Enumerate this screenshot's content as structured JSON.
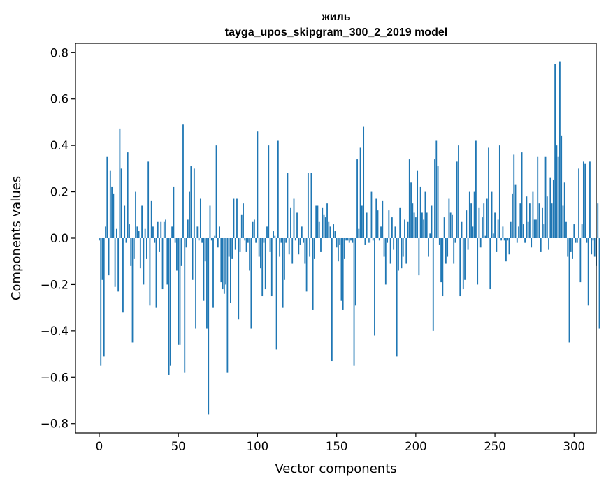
{
  "chart_data": {
    "type": "bar",
    "title_lines": [
      "жиль",
      "tayga_upos_skipgram_300_2_2019 model"
    ],
    "xlabel": "Vector components",
    "ylabel": "Components values",
    "xlim": [
      -15,
      314
    ],
    "ylim": [
      -0.84,
      0.84
    ],
    "xticks": [
      0,
      50,
      100,
      150,
      200,
      250,
      300
    ],
    "yticks": [
      -0.8,
      -0.6,
      -0.4,
      -0.2,
      0.0,
      0.2,
      0.4,
      0.6,
      0.8
    ],
    "ytick_labels": [
      "−0.8",
      "−0.6",
      "−0.4",
      "−0.2",
      "0.0",
      "0.2",
      "0.4",
      "0.6",
      "0.8"
    ],
    "bar_color": "#1f77b4",
    "values": [
      -0.01,
      -0.55,
      -0.18,
      -0.51,
      0.05,
      0.35,
      -0.16,
      0.29,
      0.22,
      0.19,
      -0.21,
      0.04,
      -0.23,
      0.47,
      0.3,
      -0.32,
      0.14,
      -0.02,
      0.37,
      0.06,
      -0.12,
      -0.45,
      -0.09,
      0.2,
      0.05,
      0.03,
      -0.13,
      0.14,
      -0.2,
      0.04,
      -0.09,
      0.33,
      -0.29,
      0.16,
      0.05,
      -0.02,
      -0.3,
      0.07,
      -0.06,
      0.07,
      -0.22,
      0.07,
      0.08,
      -0.2,
      -0.59,
      -0.55,
      0.05,
      0.22,
      -0.02,
      -0.14,
      -0.46,
      -0.46,
      -0.12,
      0.49,
      -0.58,
      -0.04,
      0.08,
      0.2,
      0.31,
      -0.18,
      0.3,
      -0.39,
      0.05,
      -0.01,
      0.17,
      -0.02,
      -0.27,
      -0.1,
      -0.39,
      -0.76,
      0.14,
      -0.01,
      -0.3,
      0.01,
      0.4,
      -0.04,
      0.05,
      -0.19,
      -0.22,
      -0.24,
      -0.2,
      -0.58,
      -0.08,
      -0.28,
      -0.09,
      0.17,
      -0.05,
      0.17,
      -0.35,
      -0.06,
      0.1,
      0.15,
      -0.01,
      -0.06,
      -0.02,
      -0.14,
      -0.39,
      0.07,
      0.08,
      -0.02,
      0.46,
      -0.08,
      -0.13,
      -0.25,
      -0.02,
      -0.22,
      0.05,
      0.4,
      -0.06,
      -0.25,
      0.03,
      0.01,
      -0.48,
      0.42,
      -0.08,
      -0.02,
      -0.3,
      -0.18,
      -0.02,
      0.28,
      -0.07,
      0.13,
      -0.11,
      0.17,
      -0.01,
      0.11,
      -0.07,
      -0.03,
      0.05,
      -0.02,
      -0.11,
      -0.23,
      0.28,
      -0.08,
      0.28,
      -0.31,
      -0.09,
      0.14,
      0.14,
      0.07,
      -0.06,
      0.13,
      0.1,
      0.09,
      0.15,
      0.07,
      0.05,
      -0.53,
      0.06,
      0.03,
      -0.04,
      -0.1,
      -0.03,
      -0.27,
      -0.31,
      -0.09,
      -0.01,
      -0.01,
      -0.02,
      -0.01,
      -0.02,
      -0.55,
      -0.29,
      0.34,
      0.04,
      0.39,
      0.14,
      0.48,
      -0.03,
      0.11,
      -0.02,
      -0.02,
      0.2,
      -0.01,
      -0.42,
      0.17,
      0.12,
      -0.01,
      0.05,
      0.16,
      -0.08,
      -0.2,
      -0.02,
      0.12,
      -0.11,
      0.09,
      -0.05,
      0.05,
      -0.51,
      -0.14,
      0.13,
      -0.13,
      -0.08,
      0.08,
      -0.11,
      0.07,
      0.34,
      0.24,
      0.15,
      0.11,
      0.09,
      0.29,
      -0.16,
      0.22,
      0.11,
      0.08,
      0.2,
      0.11,
      -0.08,
      0.02,
      0.14,
      -0.4,
      0.34,
      0.42,
      0.31,
      -0.03,
      -0.19,
      -0.25,
      0.09,
      -0.11,
      -0.08,
      0.17,
      0.11,
      0.1,
      -0.11,
      -0.02,
      0.33,
      0.4,
      -0.25,
      0.07,
      -0.22,
      -0.18,
      0.12,
      -0.05,
      0.2,
      0.15,
      0.05,
      0.2,
      0.42,
      -0.2,
      0.13,
      -0.04,
      0.09,
      0.15,
      0.01,
      0.17,
      0.39,
      -0.22,
      0.2,
      0.02,
      0.11,
      -0.06,
      0.08,
      0.4,
      -0.01,
      0.05,
      -0.01,
      -0.1,
      -0.01,
      -0.07,
      0.07,
      0.19,
      0.36,
      0.23,
      -0.02,
      0.05,
      0.15,
      0.37,
      0.06,
      -0.02,
      0.18,
      0.07,
      0.15,
      -0.04,
      0.2,
      0.08,
      0.08,
      0.35,
      0.15,
      -0.06,
      0.13,
      0.06,
      0.35,
      0.18,
      -0.05,
      0.26,
      0.15,
      0.25,
      0.75,
      0.4,
      0.35,
      0.76,
      0.44,
      0.14,
      0.24,
      0.07,
      -0.08,
      -0.45,
      -0.06,
      -0.09,
      0.06,
      -0.02,
      -0.02,
      0.3,
      -0.19,
      0.06,
      0.33,
      0.32,
      -0.02,
      -0.29,
      0.33,
      -0.07,
      -0.01,
      -0.08,
      -0.12,
      0.15,
      -0.39
    ]
  }
}
